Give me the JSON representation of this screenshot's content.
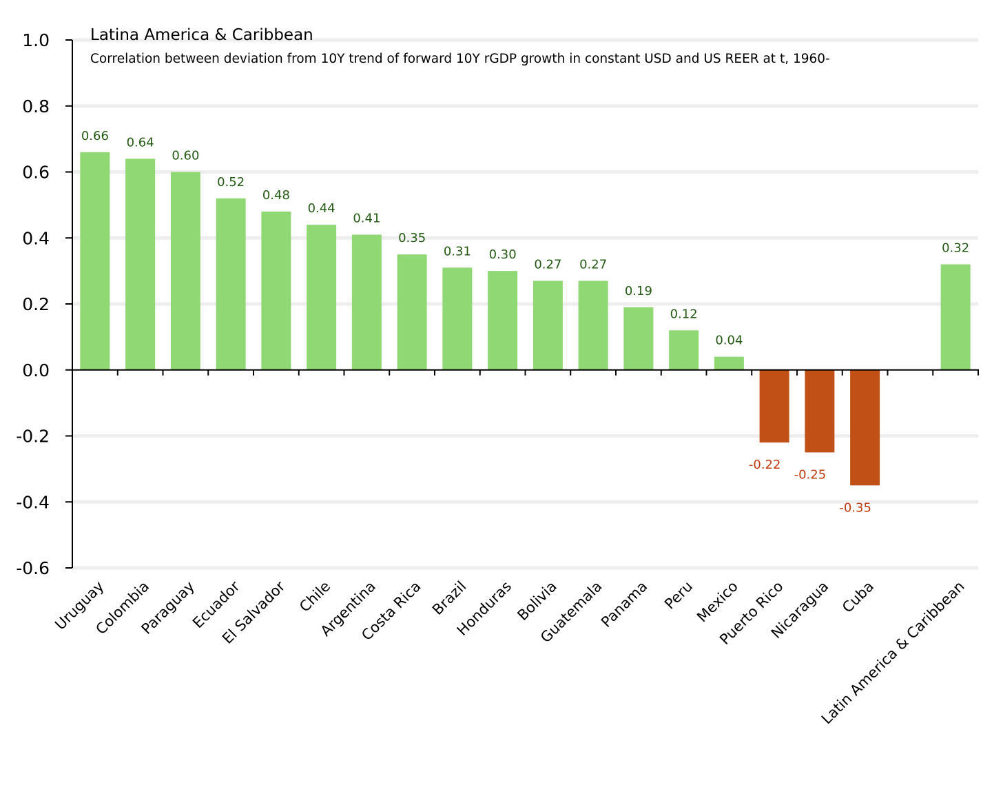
{
  "chart_data": {
    "type": "bar",
    "title": "Latina America & Caribbean",
    "subtitle": "Correlation between deviation from 10Y trend of forward 10Y rGDP growth in constant USD and US REER at t, 1960-",
    "xlabel": "",
    "ylabel": "",
    "ylim": [
      -0.6,
      1.0
    ],
    "yticks": [
      1.0,
      0.8,
      0.6,
      0.4,
      0.2,
      0.0,
      -0.2,
      -0.4,
      -0.6
    ],
    "ytick_labels": [
      "1.0",
      "0.8",
      "0.6",
      "0.4",
      "0.2",
      "0.0",
      "-0.2",
      "-0.4",
      "-0.6"
    ],
    "grid": true,
    "categories": [
      "Uruguay",
      "Colombia",
      "Paraguay",
      "Ecuador",
      "El Salvador",
      "Chile",
      "Argentina",
      "Costa Rica",
      "Brazil",
      "Honduras",
      "Bolivia",
      "Guatemala",
      "Panama",
      "Peru",
      "Mexico",
      "Puerto Rico",
      "Nicaragua",
      "Cuba",
      "",
      "Latin America & Caribbean"
    ],
    "values": [
      0.66,
      0.64,
      0.6,
      0.52,
      0.48,
      0.44,
      0.41,
      0.35,
      0.31,
      0.3,
      0.27,
      0.27,
      0.19,
      0.12,
      0.04,
      -0.22,
      -0.25,
      -0.35,
      null,
      0.32
    ],
    "value_labels": [
      "0.66",
      "0.64",
      "0.60",
      "0.52",
      "0.48",
      "0.44",
      "0.41",
      "0.35",
      "0.31",
      "0.30",
      "0.27",
      "0.27",
      "0.19",
      "0.12",
      "0.04",
      "-0.22",
      "-0.25",
      "-0.35",
      "",
      "0.32"
    ],
    "colors": {
      "positive_bar": "#8fd873",
      "negative_bar": "#c05016",
      "positive_label": "#245a14",
      "negative_label": "#c03a10",
      "grid": "#eeeeee"
    }
  }
}
